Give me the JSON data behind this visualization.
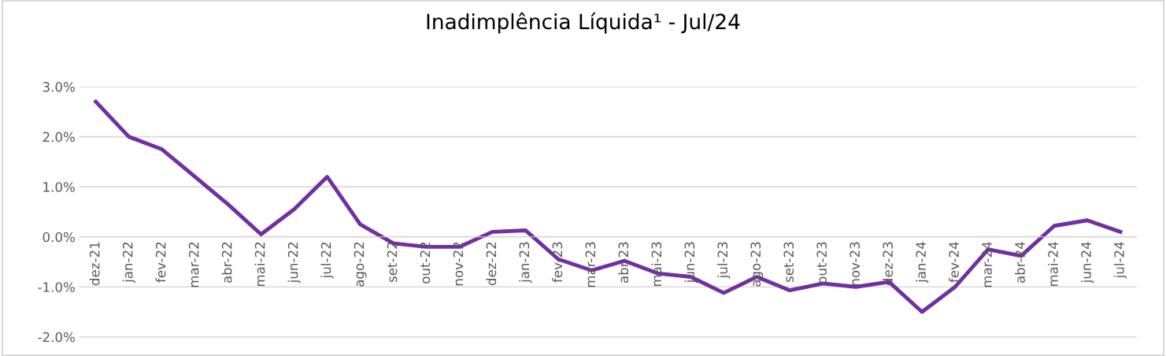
{
  "chart_data": {
    "type": "line",
    "title": "Inadimplência Líquida¹ - Jul/24",
    "categories": [
      "dez-21",
      "jan-22",
      "fev-22",
      "mar-22",
      "abr-22",
      "mai-22",
      "jun-22",
      "jul-22",
      "ago-22",
      "set-22",
      "out-22",
      "nov-22",
      "dez-22",
      "jan-23",
      "fev-23",
      "mar-23",
      "abr-23",
      "mai-23",
      "jun-23",
      "jul-23",
      "ago-23",
      "set-23",
      "out-23",
      "nov-23",
      "dez-23",
      "jan-24",
      "fev-24",
      "mar-24",
      "abr-24",
      "mai-24",
      "jun-24",
      "jul-24"
    ],
    "series": [
      {
        "color": "#7030a0",
        "values": [
          2.7,
          2.0,
          1.75,
          1.2,
          0.65,
          0.05,
          0.55,
          1.2,
          0.25,
          -0.13,
          -0.2,
          -0.2,
          0.1,
          0.13,
          -0.45,
          -0.67,
          -0.48,
          -0.73,
          -0.8,
          -1.12,
          -0.8,
          -1.07,
          -0.93,
          -1.0,
          -0.9,
          -1.5,
          -1.0,
          -0.25,
          -0.38,
          0.22,
          0.33,
          0.1
        ]
      }
    ],
    "ylim": [
      -2.35,
      3.0
    ],
    "yticks": [
      {
        "value": -2,
        "label": "-2.0%"
      },
      {
        "value": -1,
        "label": "-1.0%"
      },
      {
        "value": 0,
        "label": "0.0%"
      },
      {
        "value": 1,
        "label": "1.0%"
      },
      {
        "value": 2,
        "label": "2.0%"
      },
      {
        "value": 3,
        "label": "3.0%"
      }
    ],
    "grid": "y",
    "legend": false,
    "marker": "none",
    "line_style": "solid"
  }
}
